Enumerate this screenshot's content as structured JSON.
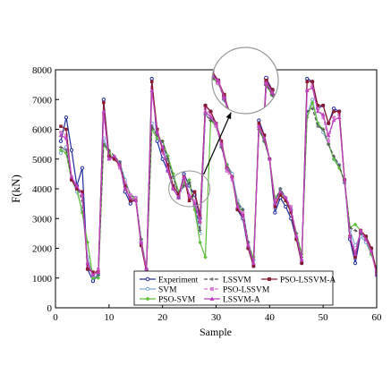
{
  "chart_data": {
    "type": "line",
    "title": "",
    "xlabel": "Sample",
    "ylabel": "F(kN)",
    "xlim": [
      0,
      60
    ],
    "ylim": [
      0,
      8000
    ],
    "xticks": [
      0,
      10,
      20,
      30,
      40,
      50,
      60
    ],
    "yticks": [
      0,
      1000,
      2000,
      3000,
      4000,
      5000,
      6000,
      7000,
      8000
    ],
    "x": [
      1,
      2,
      3,
      4,
      5,
      6,
      7,
      8,
      9,
      10,
      11,
      12,
      13,
      14,
      15,
      16,
      17,
      18,
      19,
      20,
      21,
      22,
      23,
      24,
      25,
      26,
      27,
      28,
      29,
      30,
      31,
      32,
      33,
      34,
      35,
      36,
      37,
      38,
      39,
      40,
      41,
      42,
      43,
      44,
      45,
      46,
      47,
      48,
      49,
      50,
      51,
      52,
      53,
      54,
      55,
      56,
      57,
      58,
      59,
      60
    ],
    "legend_position": "bottom-center",
    "series": [
      {
        "name": "Experiment",
        "color": "#1f2a9c",
        "marker": "circle",
        "dash": "solid",
        "values": [
          5600,
          6400,
          5300,
          4100,
          4700,
          1300,
          900,
          1100,
          7000,
          5100,
          5000,
          4900,
          3900,
          3500,
          3700,
          2200,
          1300,
          7700,
          5600,
          5000,
          4600,
          4000,
          3700,
          4500,
          4100,
          3800,
          3000,
          6800,
          6600,
          6100,
          5500,
          4800,
          4500,
          3300,
          3000,
          2000,
          1400,
          6300,
          5800,
          5000,
          3200,
          3700,
          3400,
          3000,
          2300,
          1500,
          7700,
          7600,
          6700,
          6800,
          6200,
          6700,
          6600,
          4300,
          2300,
          1500,
          2500,
          2400,
          2000,
          1100
        ]
      },
      {
        "name": "SVM",
        "color": "#7fa9d9",
        "marker": "circle",
        "dash": "solid",
        "values": [
          5200,
          5400,
          4300,
          3900,
          3300,
          1700,
          1000,
          1100,
          5700,
          5200,
          5000,
          4900,
          4300,
          3800,
          3700,
          2300,
          1300,
          6200,
          5700,
          5500,
          4900,
          4400,
          3800,
          4100,
          4200,
          3400,
          2500,
          6500,
          6300,
          6200,
          5400,
          4700,
          4500,
          3600,
          3300,
          2200,
          1600,
          6100,
          5600,
          5000,
          3500,
          4000,
          3700,
          3300,
          2400,
          1600,
          6500,
          7000,
          6200,
          5900,
          5500,
          5000,
          4800,
          4200,
          2600,
          2100,
          2400,
          2200,
          1800,
          1200
        ]
      },
      {
        "name": "PSO-SVM",
        "color": "#5fbf3a",
        "marker": "diamond",
        "dash": "solid",
        "values": [
          5300,
          5200,
          4300,
          4000,
          3200,
          2200,
          1000,
          1000,
          5500,
          5200,
          5000,
          4800,
          4200,
          3800,
          3600,
          2300,
          1300,
          6000,
          5700,
          5600,
          5100,
          4500,
          3900,
          4200,
          4300,
          3300,
          2200,
          1700,
          6300,
          6100,
          5500,
          4800,
          4400,
          3500,
          3200,
          2100,
          1700,
          6000,
          5600,
          5000,
          3700,
          3900,
          3600,
          3200,
          2500,
          1800,
          6400,
          6900,
          6200,
          6000,
          5500,
          5000,
          4700,
          4300,
          2700,
          2800,
          2600,
          2300,
          1800,
          1300
        ]
      },
      {
        "name": "LSSVM",
        "color": "#555555",
        "marker": "plus",
        "dash": "dashed",
        "values": [
          5400,
          5300,
          4300,
          4100,
          3600,
          1500,
          1100,
          1100,
          5500,
          5300,
          5100,
          4900,
          4200,
          3800,
          3700,
          2300,
          1300,
          6100,
          5800,
          5600,
          5000,
          4400,
          3800,
          4100,
          4200,
          3500,
          2600,
          6500,
          6300,
          6200,
          5400,
          4700,
          4400,
          3500,
          3300,
          2200,
          1500,
          6000,
          5600,
          5000,
          3600,
          4000,
          3700,
          3300,
          2500,
          1700,
          6600,
          6700,
          6100,
          6000,
          5500,
          5100,
          4800,
          4200,
          2700,
          2600,
          2500,
          2300,
          1900,
          1300
        ]
      },
      {
        "name": "PSO-LSSVM",
        "color": "#d77bd4",
        "marker": "square",
        "dash": "dashed",
        "values": [
          5900,
          5800,
          4400,
          4000,
          3900,
          1400,
          1100,
          1300,
          6500,
          5000,
          5000,
          4700,
          4200,
          3800,
          3700,
          2200,
          1300,
          7400,
          6000,
          5200,
          4700,
          4000,
          3800,
          4300,
          3700,
          3600,
          2900,
          6700,
          6500,
          6100,
          5500,
          4600,
          4300,
          3400,
          3200,
          2100,
          1400,
          6100,
          5800,
          5000,
          3600,
          3800,
          3700,
          3400,
          2400,
          1600,
          7300,
          7500,
          6700,
          6400,
          5600,
          6400,
          6500,
          4300,
          2400,
          1900,
          2600,
          2300,
          1900,
          1100
        ]
      },
      {
        "name": "PSO-LSSVM-A",
        "color": "#8c1a2e",
        "marker": "square",
        "dash": "solid",
        "values": [
          6100,
          6000,
          4300,
          4000,
          3900,
          1300,
          1200,
          1200,
          6900,
          5100,
          5000,
          4800,
          4100,
          3600,
          3600,
          2100,
          1200,
          7600,
          6000,
          5300,
          4800,
          4100,
          3800,
          4400,
          3600,
          3900,
          3100,
          6800,
          6600,
          6200,
          5600,
          4700,
          4400,
          3300,
          3100,
          2000,
          1400,
          6200,
          5800,
          5000,
          3400,
          3800,
          3600,
          3200,
          2300,
          1500,
          7600,
          7600,
          6800,
          6800,
          6200,
          6600,
          6600,
          4300,
          2400,
          1700,
          2600,
          2400,
          2000,
          1200
        ]
      },
      {
        "name": "LSSVM-A",
        "color": "#c040c0",
        "marker": "triangle",
        "dash": "solid",
        "values": [
          5800,
          5700,
          4400,
          4100,
          3800,
          1500,
          1100,
          1200,
          6600,
          5000,
          5100,
          4800,
          4000,
          3700,
          3600,
          2200,
          1300,
          7300,
          5900,
          5400,
          4600,
          4000,
          3700,
          4400,
          3800,
          3500,
          2900,
          6600,
          6400,
          6200,
          5500,
          4700,
          4400,
          3400,
          3100,
          2100,
          1500,
          6100,
          5700,
          5000,
          3500,
          3900,
          3700,
          3300,
          2400,
          1600,
          7300,
          7400,
          6600,
          6500,
          5800,
          6300,
          6400,
          4300,
          2400,
          1800,
          2600,
          2300,
          1900,
          1100
        ]
      }
    ],
    "legend_layout": [
      [
        "Experiment",
        "LSSVM",
        "PSO-LSSVM-A"
      ],
      [
        "SVM",
        "PSO-LSSVM",
        ""
      ],
      [
        "PSO-SVM",
        "LSSVM-A",
        ""
      ]
    ],
    "annotations": {
      "zoom_source": {
        "x": 25,
        "y": 4000
      },
      "zoom_window": {
        "x_range": [
          29,
          40
        ],
        "y_range": [
          4800,
          7600
        ]
      }
    }
  }
}
